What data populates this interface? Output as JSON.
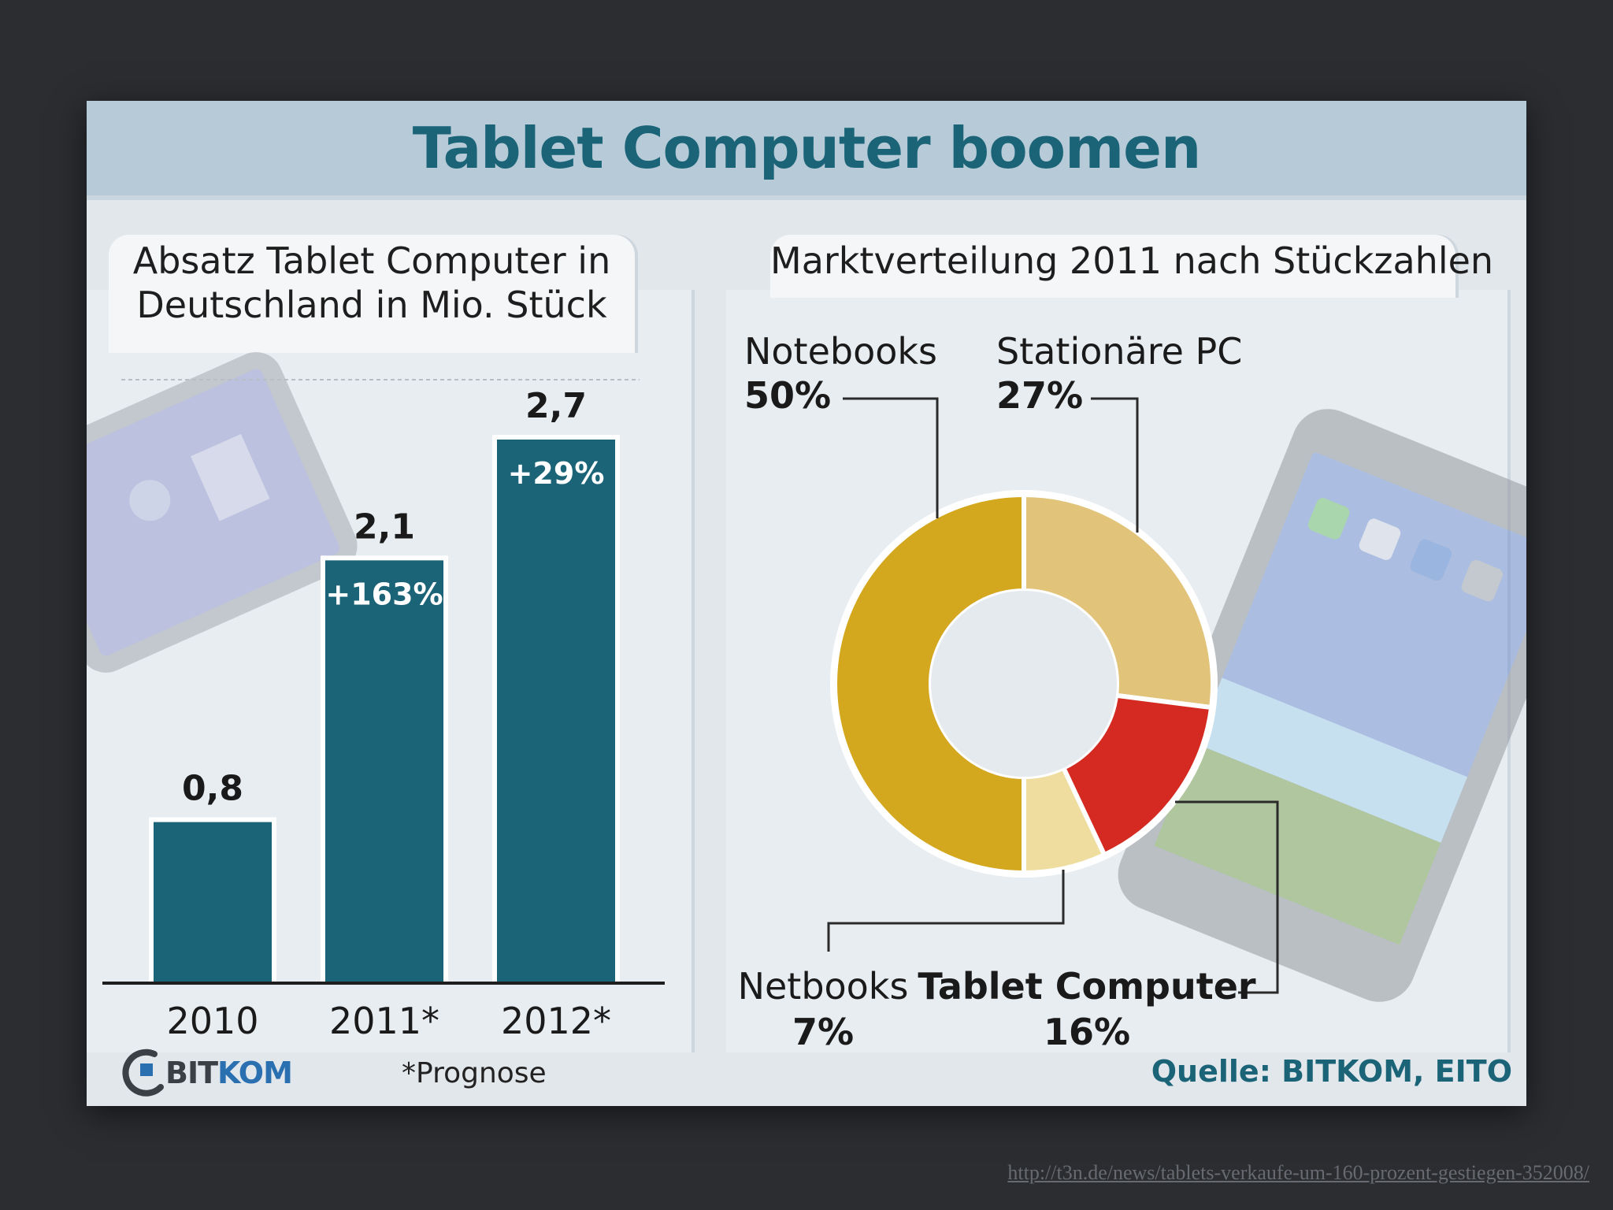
{
  "title": "Tablet Computer boomen",
  "colors": {
    "title": "#1b6478",
    "bar": "#1b6478",
    "notebooks": "#d4a81e",
    "stationaere_pc": "#e2c37a",
    "tablet": "#d42a22",
    "netbooks": "#eedd9f"
  },
  "left_heading": {
    "line1": "Absatz Tablet Computer in",
    "line2": "Deutschland in Mio. Stück"
  },
  "right_heading": "Marktverteilung 2011 nach Stückzahlen",
  "footnote": "*Prognose",
  "source": "Quelle: BITKOM, EITO",
  "logo": {
    "name": "BITKOM",
    "icon": "bitkom-logo-icon"
  },
  "footer_url": "http://t3n.de/news/tablets-verkaufe-um-160-prozent-gestiegen-352008/",
  "chart_data": [
    {
      "type": "bar",
      "title": "Absatz Tablet Computer in Deutschland in Mio. Stück",
      "categories": [
        "2010",
        "2011*",
        "2012*"
      ],
      "values": [
        0.8,
        2.1,
        2.7
      ],
      "value_labels": [
        "0,8",
        "2,1",
        "2,7"
      ],
      "growth_labels": [
        "",
        "+163%",
        "+29%"
      ],
      "ylim": [
        0,
        2.7
      ],
      "grid": false
    },
    {
      "type": "pie",
      "title": "Marktverteilung 2011 nach Stückzahlen",
      "donut": true,
      "slices": [
        {
          "label": "Notebooks",
          "value": 50,
          "value_label": "50%",
          "color": "#d4a81e"
        },
        {
          "label": "Stationäre PC",
          "value": 27,
          "value_label": "27%",
          "color": "#e2c37a"
        },
        {
          "label": "Tablet Computer",
          "value": 16,
          "value_label": "16%",
          "color": "#d42a22"
        },
        {
          "label": "Netbooks",
          "value": 7,
          "value_label": "7%",
          "color": "#eedd9f"
        }
      ]
    }
  ]
}
